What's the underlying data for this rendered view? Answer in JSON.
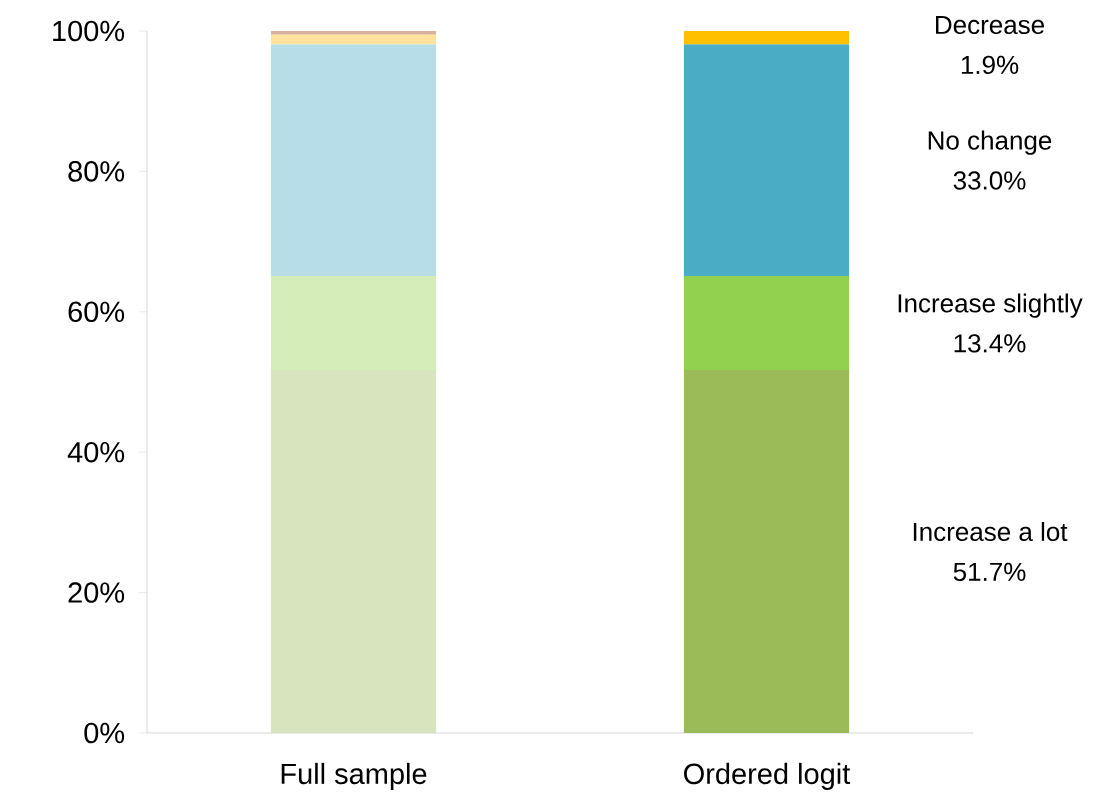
{
  "chart_data": {
    "type": "bar",
    "stacked": true,
    "categories": [
      "Full sample",
      "Ordered logit"
    ],
    "series": [
      {
        "name": "Increase a lot",
        "colors": [
          "#d7e4bd",
          "#9bbb59"
        ],
        "values": [
          51.7,
          51.7
        ]
      },
      {
        "name": "Increase slightly",
        "colors": [
          "#d4edb9",
          "#92d050"
        ],
        "values": [
          13.4,
          13.4
        ]
      },
      {
        "name": "No change",
        "colors": [
          "#b7dee8",
          "#4bacc6"
        ],
        "values": [
          33.0,
          33.0
        ]
      },
      {
        "name": "Decrease",
        "colors": [
          "#ffe29b",
          "#ffc000"
        ],
        "values": [
          1.4,
          1.9
        ]
      },
      {
        "colors": [
          "#d9b09a",
          null
        ],
        "values": [
          0.5,
          null
        ]
      }
    ],
    "annotations": [
      "51.7%",
      "13.4%",
      "33.0%",
      "1.9%"
    ],
    "ylim": [
      0,
      100
    ],
    "yticks": [
      {
        "value": 0,
        "label": "0%"
      },
      {
        "value": 20,
        "label": "20%"
      },
      {
        "value": 40,
        "label": "40%"
      },
      {
        "value": 60,
        "label": "60%"
      },
      {
        "value": 80,
        "label": "80%"
      },
      {
        "value": 100,
        "label": "100%"
      }
    ],
    "grid": false
  }
}
